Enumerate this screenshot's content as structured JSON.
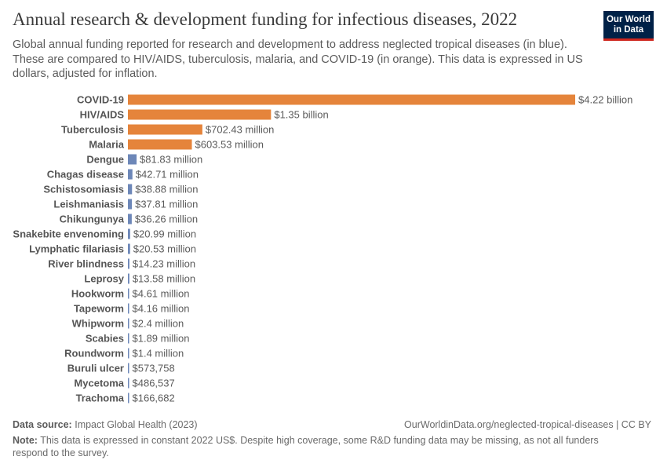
{
  "header": {
    "title": "Annual research & development funding for infectious diseases, 2022",
    "subtitle": "Global annual funding reported for research and development to address neglected tropical diseases (in blue). These are compared to HIV/AIDS, tuberculosis, malaria, and COVID-19 (in orange). This data is expressed in US dollars, adjusted for inflation.",
    "logo_line1": "Our World",
    "logo_line2": "in Data"
  },
  "footer": {
    "source_label": "Data source:",
    "source_text": "Impact Global Health (2023)",
    "credit": "OurWorldinData.org/neglected-tropical-diseases | CC BY",
    "note_label": "Note:",
    "note_text": "This data is expressed in constant 2022 US$. Despite high coverage, some R&D funding data may be missing, as not all funders respond to the survey."
  },
  "colors": {
    "orange": "#e5843b",
    "blue": "#6d87b8",
    "logo_bg": "#002147",
    "logo_accent": "#ce261e"
  },
  "chart_data": {
    "type": "bar",
    "orientation": "horizontal",
    "xlim": [
      0,
      4220000000
    ],
    "categories": [
      "COVID-19",
      "HIV/AIDS",
      "Tuberculosis",
      "Malaria",
      "Dengue",
      "Chagas disease",
      "Schistosomiasis",
      "Leishmaniasis",
      "Chikungunya",
      "Snakebite envenoming",
      "Lymphatic filariasis",
      "River blindness",
      "Leprosy",
      "Hookworm",
      "Tapeworm",
      "Whipworm",
      "Scabies",
      "Roundworm",
      "Buruli ulcer",
      "Mycetoma",
      "Trachoma"
    ],
    "values": [
      4220000000,
      1350000000,
      702430000,
      603530000,
      81830000,
      42710000,
      38880000,
      37810000,
      36260000,
      20990000,
      20530000,
      14230000,
      13580000,
      4610000,
      4160000,
      2400000,
      1890000,
      1400000,
      573758,
      486537,
      166682
    ],
    "labels": [
      "$4.22 billion",
      "$1.35 billion",
      "$702.43 million",
      "$603.53 million",
      "$81.83 million",
      "$42.71 million",
      "$38.88 million",
      "$37.81 million",
      "$36.26 million",
      "$20.99 million",
      "$20.53 million",
      "$14.23 million",
      "$13.58 million",
      "$4.61 million",
      "$4.16 million",
      "$2.4 million",
      "$1.89 million",
      "$1.4 million",
      "$573,758",
      "$486,537",
      "$166,682"
    ],
    "groups": [
      "comparison",
      "comparison",
      "comparison",
      "comparison",
      "ntd",
      "ntd",
      "ntd",
      "ntd",
      "ntd",
      "ntd",
      "ntd",
      "ntd",
      "ntd",
      "ntd",
      "ntd",
      "ntd",
      "ntd",
      "ntd",
      "ntd",
      "ntd",
      "ntd"
    ],
    "legend": {
      "comparison": "HIV/AIDS, tuberculosis, malaria, and COVID-19 (in orange)",
      "ntd": "neglected tropical diseases (in blue)"
    }
  }
}
